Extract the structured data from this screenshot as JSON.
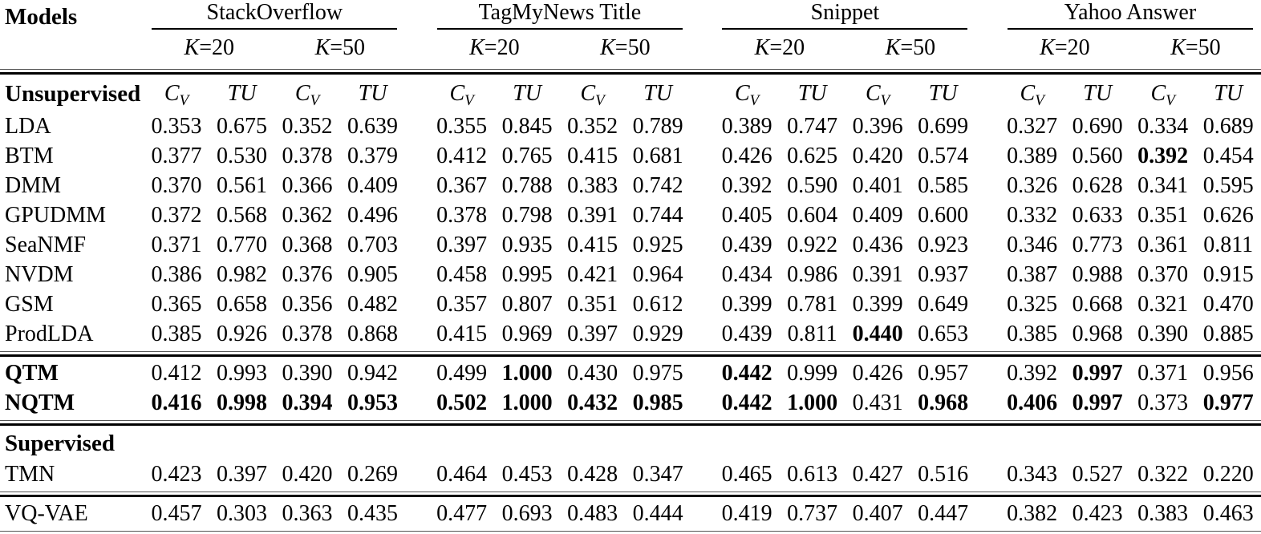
{
  "table": {
    "models_header": "Models",
    "groups": [
      {
        "name": "StackOverflow"
      },
      {
        "name": "TagMyNews Title"
      },
      {
        "name": "Snippet"
      },
      {
        "name": "Yahoo Answer"
      }
    ],
    "k_var": "K",
    "k_rests": [
      "=20",
      "=50"
    ],
    "metrics": {
      "cv_base": "C",
      "cv_sub": "V",
      "tu": "TU"
    },
    "rows": [
      {
        "type": "metrics-header",
        "label": "Unsupervised"
      },
      {
        "type": "data",
        "label": "LDA",
        "bold_label": false,
        "values": [
          "0.353",
          "0.675",
          "0.352",
          "0.639",
          "0.355",
          "0.845",
          "0.352",
          "0.789",
          "0.389",
          "0.747",
          "0.396",
          "0.699",
          "0.327",
          "0.690",
          "0.334",
          "0.689"
        ],
        "bold": []
      },
      {
        "type": "data",
        "label": "BTM",
        "bold_label": false,
        "values": [
          "0.377",
          "0.530",
          "0.378",
          "0.379",
          "0.412",
          "0.765",
          "0.415",
          "0.681",
          "0.426",
          "0.625",
          "0.420",
          "0.574",
          "0.389",
          "0.560",
          "0.392",
          "0.454"
        ],
        "bold": [
          14
        ]
      },
      {
        "type": "data",
        "label": "DMM",
        "bold_label": false,
        "values": [
          "0.370",
          "0.561",
          "0.366",
          "0.409",
          "0.367",
          "0.788",
          "0.383",
          "0.742",
          "0.392",
          "0.590",
          "0.401",
          "0.585",
          "0.326",
          "0.628",
          "0.341",
          "0.595"
        ],
        "bold": []
      },
      {
        "type": "data",
        "label": "GPUDMM",
        "bold_label": false,
        "values": [
          "0.372",
          "0.568",
          "0.362",
          "0.496",
          "0.378",
          "0.798",
          "0.391",
          "0.744",
          "0.405",
          "0.604",
          "0.409",
          "0.600",
          "0.332",
          "0.633",
          "0.351",
          "0.626"
        ],
        "bold": []
      },
      {
        "type": "data",
        "label": "SeaNMF",
        "bold_label": false,
        "values": [
          "0.371",
          "0.770",
          "0.368",
          "0.703",
          "0.397",
          "0.935",
          "0.415",
          "0.925",
          "0.439",
          "0.922",
          "0.436",
          "0.923",
          "0.346",
          "0.773",
          "0.361",
          "0.811"
        ],
        "bold": []
      },
      {
        "type": "data",
        "label": "NVDM",
        "bold_label": false,
        "values": [
          "0.386",
          "0.982",
          "0.376",
          "0.905",
          "0.458",
          "0.995",
          "0.421",
          "0.964",
          "0.434",
          "0.986",
          "0.391",
          "0.937",
          "0.387",
          "0.988",
          "0.370",
          "0.915"
        ],
        "bold": []
      },
      {
        "type": "data",
        "label": "GSM",
        "bold_label": false,
        "values": [
          "0.365",
          "0.658",
          "0.356",
          "0.482",
          "0.357",
          "0.807",
          "0.351",
          "0.612",
          "0.399",
          "0.781",
          "0.399",
          "0.649",
          "0.325",
          "0.668",
          "0.321",
          "0.470"
        ],
        "bold": []
      },
      {
        "type": "data",
        "label": "ProdLDA",
        "bold_label": false,
        "values": [
          "0.385",
          "0.926",
          "0.378",
          "0.868",
          "0.415",
          "0.969",
          "0.397",
          "0.929",
          "0.439",
          "0.811",
          "0.440",
          "0.653",
          "0.385",
          "0.968",
          "0.390",
          "0.885"
        ],
        "bold": [
          10
        ]
      },
      {
        "type": "rule"
      },
      {
        "type": "data",
        "label": "QTM",
        "bold_label": true,
        "values": [
          "0.412",
          "0.993",
          "0.390",
          "0.942",
          "0.499",
          "1.000",
          "0.430",
          "0.975",
          "0.442",
          "0.999",
          "0.426",
          "0.957",
          "0.392",
          "0.997",
          "0.371",
          "0.956"
        ],
        "bold": [
          5,
          8,
          13
        ]
      },
      {
        "type": "data",
        "label": "NQTM",
        "bold_label": true,
        "values": [
          "0.416",
          "0.998",
          "0.394",
          "0.953",
          "0.502",
          "1.000",
          "0.432",
          "0.985",
          "0.442",
          "1.000",
          "0.431",
          "0.968",
          "0.406",
          "0.997",
          "0.373",
          "0.977"
        ],
        "bold": [
          0,
          1,
          2,
          3,
          4,
          5,
          6,
          7,
          8,
          9,
          11,
          12,
          13,
          15
        ]
      },
      {
        "type": "rule"
      },
      {
        "type": "section",
        "label": "Supervised"
      },
      {
        "type": "data",
        "label": "TMN",
        "bold_label": false,
        "values": [
          "0.423",
          "0.397",
          "0.420",
          "0.269",
          "0.464",
          "0.453",
          "0.428",
          "0.347",
          "0.465",
          "0.613",
          "0.427",
          "0.516",
          "0.343",
          "0.527",
          "0.322",
          "0.220"
        ],
        "bold": []
      },
      {
        "type": "rule"
      },
      {
        "type": "data",
        "label": "VQ-VAE",
        "bold_label": false,
        "values": [
          "0.457",
          "0.303",
          "0.363",
          "0.435",
          "0.477",
          "0.693",
          "0.483",
          "0.444",
          "0.419",
          "0.737",
          "0.407",
          "0.447",
          "0.382",
          "0.423",
          "0.383",
          "0.463"
        ],
        "bold": []
      },
      {
        "type": "rule"
      }
    ]
  }
}
